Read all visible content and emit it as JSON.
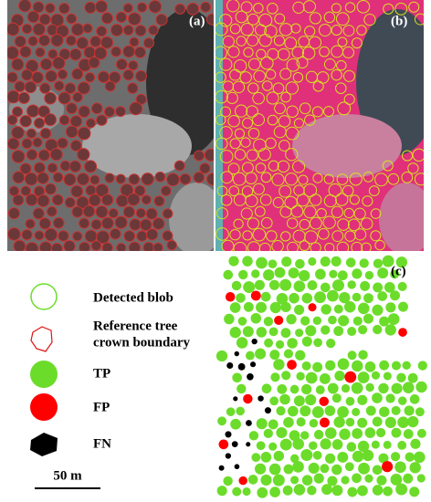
{
  "panels": [
    {
      "label": "(a)"
    },
    {
      "label": "(b)"
    },
    {
      "label": "(c)"
    }
  ],
  "legend": [
    {
      "label": "Detected blob"
    },
    {
      "label": [
        "Reference tree",
        "crown boundary"
      ]
    },
    {
      "label": "TP"
    },
    {
      "label": "FP"
    },
    {
      "label": "FN"
    }
  ],
  "scale_bar": {
    "label": "50 m"
  }
}
